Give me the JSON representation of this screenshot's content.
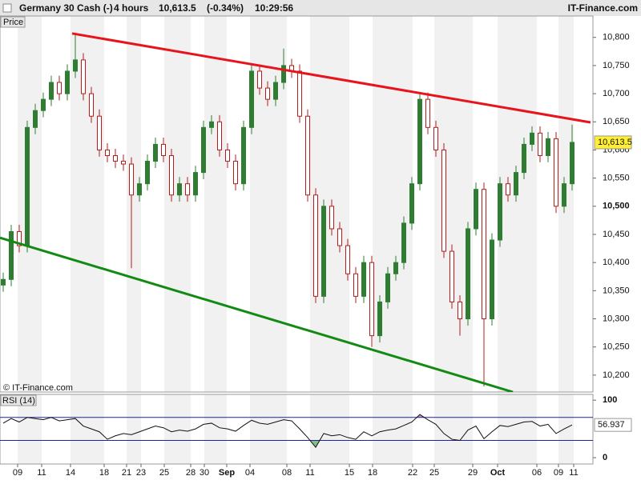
{
  "chart_data": {
    "type": "candlestick",
    "instrument": "Germany 30 Cash (-)",
    "timeframe": "4 hours",
    "last_price": {
      "value": 10613.5,
      "label": "10,613.5"
    },
    "change": {
      "value": -0.34,
      "label": "(-0.34%)"
    },
    "time": "10:29:56",
    "source": "IT-Finance.com",
    "copyright": "© IT-Finance.com",
    "panel_label": "Price",
    "up_color": "#2e7d32",
    "down_color": "#b71c1c",
    "open": [
      10360,
      10370,
      10455,
      10430,
      10640,
      10670,
      10690,
      10720,
      10700,
      10740,
      10760,
      10700,
      10660,
      10600,
      10590,
      10580,
      10575,
      10520,
      10540,
      10580,
      10610,
      10590,
      10520,
      10540,
      10520,
      10560,
      10640,
      10650,
      10600,
      10580,
      10540,
      10640,
      10740,
      10710,
      10690,
      10720,
      10750,
      10740,
      10660,
      10520,
      10340,
      10500,
      10460,
      10430,
      10380,
      10340,
      10400,
      10270,
      10330,
      10380,
      10400,
      10470,
      10540,
      10690,
      10640,
      10600,
      10420,
      10330,
      10300,
      10460,
      10530,
      10300,
      10440,
      10540,
      10520,
      10560,
      10610,
      10630,
      10590,
      10620,
      10500,
      10540
    ],
    "high": [
      10382,
      10467,
      10467,
      10652,
      10682,
      10702,
      10732,
      10732,
      10752,
      10805,
      10772,
      10712,
      10672,
      10612,
      10602,
      10592,
      10587,
      10552,
      10592,
      10622,
      10622,
      10602,
      10552,
      10552,
      10572,
      10652,
      10662,
      10662,
      10612,
      10592,
      10652,
      10752,
      10752,
      10722,
      10732,
      10780,
      10762,
      10752,
      10672,
      10532,
      10512,
      10512,
      10472,
      10442,
      10392,
      10412,
      10412,
      10342,
      10392,
      10412,
      10482,
      10552,
      10702,
      10702,
      10652,
      10612,
      10432,
      10342,
      10472,
      10542,
      10542,
      10452,
      10552,
      10552,
      10572,
      10622,
      10642,
      10642,
      10632,
      10632,
      10552,
      10645
    ],
    "low": [
      10348,
      10358,
      10418,
      10418,
      10628,
      10658,
      10678,
      10688,
      10688,
      10728,
      10688,
      10648,
      10588,
      10578,
      10568,
      10563,
      10390,
      10508,
      10528,
      10568,
      10578,
      10508,
      10508,
      10508,
      10508,
      10548,
      10628,
      10588,
      10568,
      10528,
      10528,
      10628,
      10698,
      10678,
      10678,
      10708,
      10728,
      10648,
      10508,
      10328,
      10328,
      10448,
      10418,
      10368,
      10328,
      10328,
      10250,
      10258,
      10318,
      10368,
      10388,
      10458,
      10528,
      10628,
      10588,
      10408,
      10318,
      10270,
      10288,
      10448,
      10180,
      10288,
      10428,
      10508,
      10508,
      10548,
      10598,
      10578,
      10578,
      10488,
      10488,
      10528
    ],
    "close": [
      10370,
      10455,
      10430,
      10640,
      10670,
      10690,
      10720,
      10700,
      10740,
      10760,
      10700,
      10660,
      10600,
      10590,
      10580,
      10575,
      10520,
      10540,
      10580,
      10610,
      10590,
      10520,
      10540,
      10520,
      10560,
      10640,
      10650,
      10600,
      10580,
      10540,
      10640,
      10740,
      10710,
      10690,
      10720,
      10750,
      10740,
      10660,
      10520,
      10340,
      10500,
      10460,
      10430,
      10380,
      10340,
      10400,
      10270,
      10330,
      10380,
      10400,
      10470,
      10540,
      10690,
      10640,
      10600,
      10420,
      10330,
      10300,
      10460,
      10530,
      10300,
      10440,
      10540,
      10520,
      10560,
      10610,
      10630,
      10590,
      10620,
      10500,
      10540,
      10613.5
    ],
    "xlim": [
      -0.4,
      73.6
    ],
    "xticks": [
      {
        "value": 1.8,
        "label": "09"
      },
      {
        "value": 4.8,
        "label": "11"
      },
      {
        "value": 8.4,
        "label": "14"
      },
      {
        "value": 12.6,
        "label": "18"
      },
      {
        "value": 15.4,
        "label": "21"
      },
      {
        "value": 17.2,
        "label": "23"
      },
      {
        "value": 20.1,
        "label": "25"
      },
      {
        "value": 23.4,
        "label": "28"
      },
      {
        "value": 25.1,
        "label": "30"
      },
      {
        "value": 27.9,
        "label": "Sep",
        "bold": true
      },
      {
        "value": 30.8,
        "label": "04"
      },
      {
        "value": 35.4,
        "label": "08"
      },
      {
        "value": 38.3,
        "label": "11"
      },
      {
        "value": 43.2,
        "label": "15"
      },
      {
        "value": 46.1,
        "label": "18"
      },
      {
        "value": 51.1,
        "label": "22"
      },
      {
        "value": 53.8,
        "label": "25"
      },
      {
        "value": 58.6,
        "label": "29"
      },
      {
        "value": 61.7,
        "label": "Oct",
        "bold": true
      },
      {
        "value": 66.6,
        "label": "06"
      },
      {
        "value": 69.3,
        "label": "09"
      },
      {
        "value": 71.2,
        "label": "11"
      }
    ],
    "ylim": [
      10170,
      10838
    ],
    "yticks": [
      {
        "value": 10200,
        "label": "10,200"
      },
      {
        "value": 10250,
        "label": "10,250"
      },
      {
        "value": 10300,
        "label": "10,300"
      },
      {
        "value": 10350,
        "label": "10,350"
      },
      {
        "value": 10400,
        "label": "10,400"
      },
      {
        "value": 10450,
        "label": "10,450"
      },
      {
        "value": 10500,
        "label": "10,500",
        "bold": true
      },
      {
        "value": 10550,
        "label": "10,550"
      },
      {
        "value": 10600,
        "label": "10,600"
      },
      {
        "value": 10650,
        "label": "10,650"
      },
      {
        "value": 10700,
        "label": "10,700"
      },
      {
        "value": 10750,
        "label": "10,750"
      },
      {
        "value": 10800,
        "label": "10,800"
      }
    ],
    "trendlines": [
      {
        "color": "#e8141c",
        "x": [
          8.6,
          73.3
        ],
        "y": [
          10807,
          10649
        ]
      },
      {
        "color": "#138a13",
        "x": [
          -0.4,
          63.6
        ],
        "y": [
          10444,
          10170
        ]
      }
    ],
    "rsi": {
      "label": "RSI (14)",
      "color": "#111111",
      "values": [
        60,
        68,
        62,
        70,
        68,
        66,
        70,
        64,
        66,
        68,
        55,
        50,
        45,
        32,
        38,
        42,
        40,
        45,
        50,
        55,
        52,
        45,
        48,
        46,
        50,
        58,
        60,
        52,
        50,
        46,
        56,
        65,
        60,
        58,
        62,
        66,
        64,
        50,
        35,
        18,
        42,
        38,
        40,
        35,
        32,
        45,
        38,
        45,
        48,
        50,
        56,
        62,
        75,
        66,
        58,
        42,
        32,
        30,
        48,
        55,
        33,
        45,
        56,
        54,
        58,
        62,
        63,
        55,
        58,
        42,
        50,
        56.937
      ],
      "ylim": [
        -11,
        110
      ],
      "yticks": [
        0,
        100
      ],
      "levels": [
        30,
        70
      ],
      "level_color": "#2020a0",
      "overbought_fill": "#d9a0b0",
      "oversold_fill": "#80c080"
    }
  }
}
